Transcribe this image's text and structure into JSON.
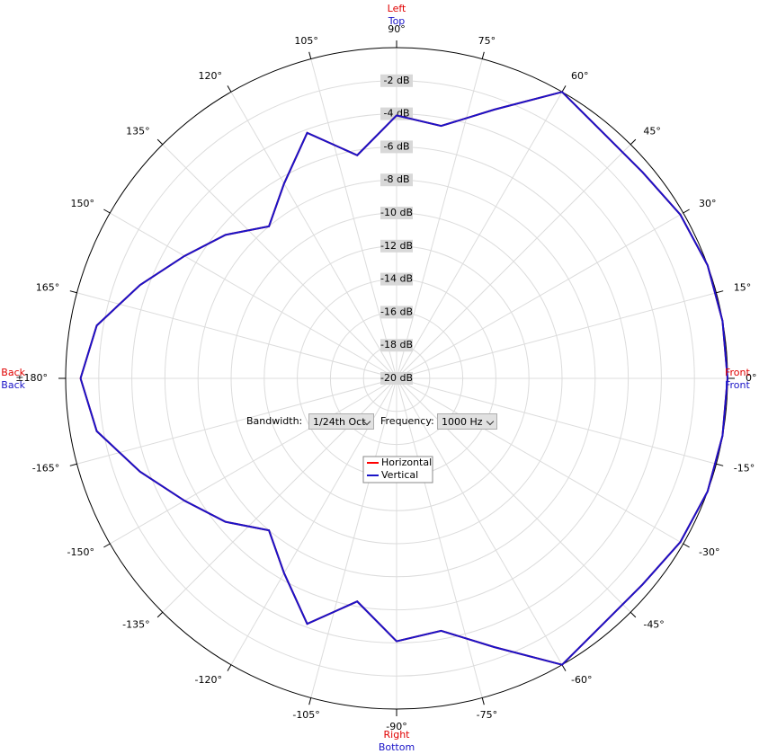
{
  "chart_data": {
    "type": "polar",
    "theta": [
      -180,
      -170,
      -160,
      -150,
      -140,
      -130,
      -120,
      -110,
      -100,
      -90,
      -80,
      -70,
      -60,
      -50,
      -40,
      -30,
      -20,
      -10,
      0,
      10,
      20,
      30,
      40,
      50,
      60,
      70,
      80,
      90,
      100,
      110,
      120,
      130,
      140,
      150,
      160,
      170,
      180
    ],
    "series": [
      {
        "name": "Horizontal",
        "color": "#ff0000",
        "values": [
          -0.9,
          -1.6,
          -3.5,
          -5.2,
          -6.5,
          -8,
          -6.4,
          -4.2,
          -6.3,
          -4.1,
          -4.5,
          -2.7,
          0,
          -0.6,
          -0.6,
          -0.2,
          0,
          0,
          0,
          0,
          0,
          -0.2,
          -0.6,
          -0.6,
          0,
          -2.7,
          -4.5,
          -4.1,
          -6.3,
          -4.2,
          -6.4,
          -8,
          -6.5,
          -5.2,
          -3.5,
          -1.6,
          -0.9
        ]
      },
      {
        "name": "Vertical",
        "color": "#1a14c8",
        "values": [
          -0.9,
          -1.6,
          -3.5,
          -5.2,
          -6.5,
          -8,
          -6.4,
          -4.2,
          -6.3,
          -4.1,
          -4.5,
          -2.7,
          0,
          -0.6,
          -0.6,
          -0.2,
          0,
          0,
          0,
          0,
          0,
          -0.2,
          -0.6,
          -0.6,
          0,
          -2.7,
          -4.5,
          -4.1,
          -6.3,
          -4.2,
          -6.4,
          -8,
          -6.5,
          -5.2,
          -3.5,
          -1.6,
          -0.9
        ]
      }
    ],
    "rlim": [
      -20,
      0
    ],
    "rticks": [
      0,
      {
        "value": -2,
        "label": "-2 dB"
      },
      {
        "value": -4,
        "label": "-4 dB"
      },
      {
        "value": -6,
        "label": "-6 dB"
      },
      {
        "value": -8,
        "label": "-8 dB"
      },
      {
        "value": -10,
        "label": "-10 dB"
      },
      {
        "value": -12,
        "label": "-12 dB"
      },
      {
        "value": -14,
        "label": "-14 dB"
      },
      {
        "value": -16,
        "label": "-16 dB"
      },
      {
        "value": -18,
        "label": "-18 dB"
      },
      {
        "value": -20,
        "label": "-20 dB"
      }
    ],
    "thetaticks": [
      {
        "value": 0,
        "label": "0°"
      },
      {
        "value": 15,
        "label": "15°"
      },
      {
        "value": 30,
        "label": "30°"
      },
      {
        "value": 45,
        "label": "45°"
      },
      {
        "value": 60,
        "label": "60°"
      },
      {
        "value": 75,
        "label": "75°"
      },
      {
        "value": 90,
        "label": "90°"
      },
      {
        "value": 105,
        "label": "105°"
      },
      {
        "value": 120,
        "label": "120°"
      },
      {
        "value": 135,
        "label": "135°"
      },
      {
        "value": 150,
        "label": "150°"
      },
      {
        "value": 165,
        "label": "165°"
      },
      {
        "value": 180,
        "label": "±180°"
      },
      {
        "value": -165,
        "label": "-165°"
      },
      {
        "value": -150,
        "label": "-150°"
      },
      {
        "value": -135,
        "label": "-135°"
      },
      {
        "value": -120,
        "label": "-120°"
      },
      {
        "value": -105,
        "label": "-105°"
      },
      {
        "value": -90,
        "label": "-90°"
      },
      {
        "value": -75,
        "label": "-75°"
      },
      {
        "value": -60,
        "label": "-60°"
      },
      {
        "value": -45,
        "label": "-45°"
      },
      {
        "value": -30,
        "label": "-30°"
      },
      {
        "value": -15,
        "label": "-15°"
      }
    ],
    "direction_labels": {
      "top": [
        "Left",
        "Top"
      ],
      "bottom": [
        "Right",
        "Bottom"
      ],
      "left": [
        "Back",
        "Back"
      ],
      "right": [
        "Front",
        "Front"
      ]
    }
  },
  "controls": {
    "bandwidth_label": "Bandwidth:",
    "bandwidth": "1/24th Oct",
    "frequency_label": "Frequency:",
    "frequency": "1000 Hz"
  }
}
